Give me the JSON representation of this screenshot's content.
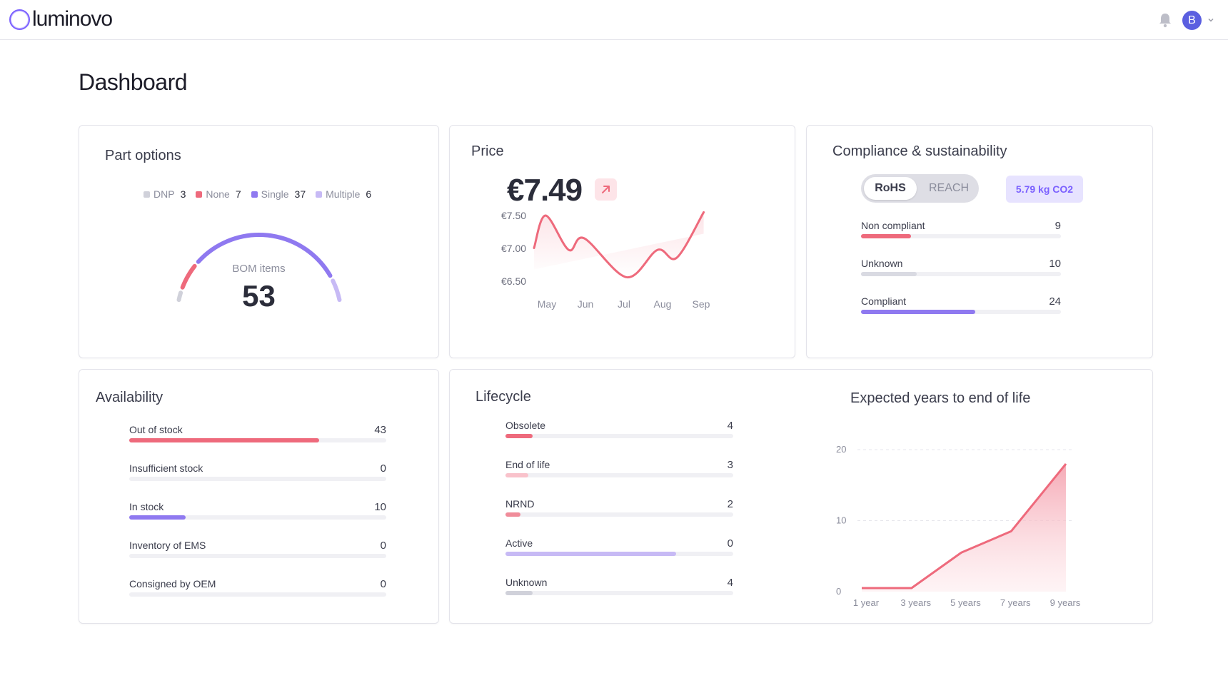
{
  "app": {
    "brand": "luminovo",
    "avatar_initial": "B"
  },
  "page": {
    "title": "Dashboard"
  },
  "colors": {
    "accent": "#7b61ff",
    "red": "#ee6a7c",
    "lavender": "#c7baf5",
    "pink": "#f9c2cb",
    "grey": "#d0d1da"
  },
  "part_options": {
    "title": "Part options",
    "legend": [
      {
        "label": "DNP",
        "count": "3",
        "color": "#d0d1da"
      },
      {
        "label": "None",
        "count": "7",
        "color": "#ee6a7c"
      },
      {
        "label": "Single",
        "count": "37",
        "color": "#8f79f0"
      },
      {
        "label": "Multiple",
        "count": "6",
        "color": "#c7baf5"
      }
    ],
    "center_label": "BOM items",
    "total": "53"
  },
  "price": {
    "title": "Price",
    "current": "€7.49",
    "trend_icon": "arrow-up-right-icon",
    "chart_data": {
      "type": "line",
      "x": [
        "May",
        "Jun",
        "Jul",
        "Aug",
        "Sep"
      ],
      "y_ticks": [
        "€7.50",
        "€7.00",
        "€6.50"
      ],
      "ylim": [
        6.5,
        7.5
      ],
      "points": [
        {
          "x": 0.0,
          "y": 7.0
        },
        {
          "x": 0.3,
          "y": 7.5
        },
        {
          "x": 0.9,
          "y": 6.97
        },
        {
          "x": 1.3,
          "y": 7.15
        },
        {
          "x": 2.4,
          "y": 6.55
        },
        {
          "x": 3.2,
          "y": 6.97
        },
        {
          "x": 3.7,
          "y": 6.85
        },
        {
          "x": 4.4,
          "y": 7.55
        }
      ]
    }
  },
  "compliance": {
    "title": "Compliance & sustainability",
    "tabs": [
      {
        "label": "RoHS",
        "active": true
      },
      {
        "label": "REACH",
        "active": false
      }
    ],
    "co2": "5.79 kg CO2",
    "rows": [
      {
        "label": "Non compliant",
        "count": "9",
        "fraction": 0.25,
        "color": "#ee6a7c"
      },
      {
        "label": "Unknown",
        "count": "10",
        "fraction": 0.28,
        "color": "#d9dae2"
      },
      {
        "label": "Compliant",
        "count": "24",
        "fraction": 0.57,
        "color": "#8f79f0"
      }
    ]
  },
  "availability": {
    "title": "Availability",
    "rows": [
      {
        "label": "Out of stock",
        "count": "43",
        "fraction": 0.74,
        "color": "#ee6a7c"
      },
      {
        "label": "Insufficient stock",
        "count": "0",
        "fraction": 0,
        "color": "#ee6a7c"
      },
      {
        "label": "In stock",
        "count": "10",
        "fraction": 0.22,
        "color": "#8f79f0"
      },
      {
        "label": "Inventory of EMS",
        "count": "0",
        "fraction": 0,
        "color": "#8f79f0"
      },
      {
        "label": "Consigned by OEM",
        "count": "0",
        "fraction": 0,
        "color": "#8f79f0"
      }
    ]
  },
  "lifecycle": {
    "title": "Lifecycle",
    "rows": [
      {
        "label": "Obsolete",
        "count": "4",
        "fraction": 0.12,
        "color": "#ee6a7c"
      },
      {
        "label": "End of life",
        "count": "3",
        "fraction": 0.1,
        "color": "#f9c2cb"
      },
      {
        "label": "NRND",
        "count": "2",
        "fraction": 0.065,
        "color": "#f08c9a"
      },
      {
        "label": "Active",
        "count": "0",
        "fraction": 0.75,
        "color": "#c7baf5"
      },
      {
        "label": "Unknown",
        "count": "4",
        "fraction": 0.12,
        "color": "#d0d1da"
      }
    ]
  },
  "eol": {
    "title": "Expected years to end of life",
    "chart_data": {
      "type": "area",
      "x": [
        "1 year",
        "3 years",
        "5 years",
        "7 years",
        "9 years"
      ],
      "x_values": [
        1,
        3,
        5,
        7,
        9
      ],
      "y_ticks": [
        "20",
        "10",
        "0"
      ],
      "ylim": [
        0,
        20
      ],
      "points": [
        {
          "x": 1,
          "y": 0.5
        },
        {
          "x": 3,
          "y": 0.5
        },
        {
          "x": 5,
          "y": 5.5
        },
        {
          "x": 7,
          "y": 8.5
        },
        {
          "x": 9.2,
          "y": 18
        }
      ]
    }
  }
}
